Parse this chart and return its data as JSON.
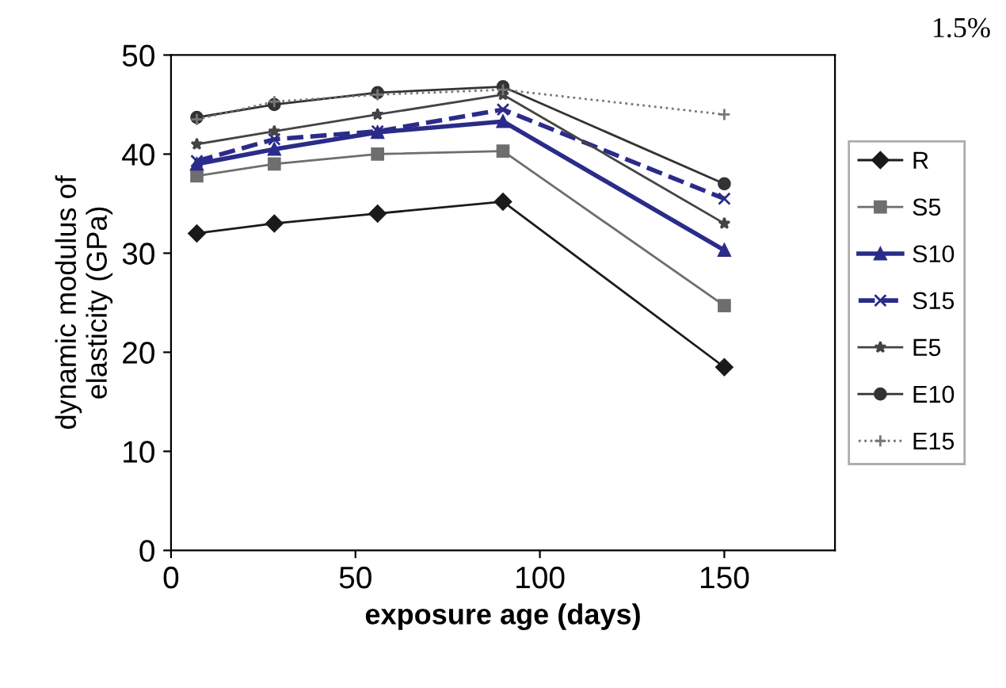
{
  "chart_data": {
    "type": "line",
    "xlabel": "exposure age (days)",
    "ylabel": "dynamic modulus of\nelasticity (GPa)",
    "x": [
      7,
      28,
      56,
      90,
      150
    ],
    "xlim": [
      0,
      180
    ],
    "xticks": [
      0,
      50,
      100,
      150
    ],
    "ylim": [
      0,
      50
    ],
    "yticks": [
      0,
      10,
      20,
      30,
      40,
      50
    ],
    "grid": false,
    "legend": "right",
    "annotations": [
      "1.5%"
    ],
    "series": [
      {
        "name": "R",
        "color": "#1a1a1a",
        "marker": "diamond",
        "line_style": "solid",
        "values": [
          32,
          33,
          34,
          35.2,
          18.5
        ]
      },
      {
        "name": "S5",
        "color": "#6e6e6e",
        "marker": "square",
        "line_style": "solid",
        "values": [
          37.8,
          39,
          40,
          40.3,
          24.7
        ]
      },
      {
        "name": "S10",
        "color": "#2b2b8a",
        "marker": "triangle",
        "line_style": "solid",
        "values": [
          39,
          40.5,
          42.2,
          43.3,
          30.3
        ]
      },
      {
        "name": "S15",
        "color": "#2b2b8a",
        "marker": "cross",
        "line_style": "dashed",
        "values": [
          39.3,
          41.5,
          42.3,
          44.5,
          35.5
        ]
      },
      {
        "name": "E5",
        "color": "#444444",
        "marker": "star",
        "line_style": "solid",
        "values": [
          41,
          42.3,
          44,
          46,
          33
        ]
      },
      {
        "name": "E10",
        "color": "#333333",
        "marker": "circle",
        "line_style": "solid",
        "values": [
          43.7,
          45,
          46.2,
          46.8,
          37
        ]
      },
      {
        "name": "E15",
        "color": "#777777",
        "marker": "plus",
        "line_style": "dotted",
        "values": [
          43.5,
          45.3,
          46,
          46.5,
          44
        ]
      }
    ]
  }
}
